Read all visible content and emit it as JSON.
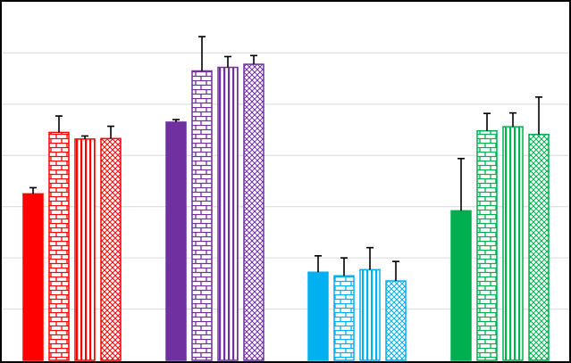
{
  "chart_data": {
    "type": "bar",
    "title": "",
    "xlabel": "",
    "ylabel": "",
    "ylim": [
      0,
      7
    ],
    "grid": true,
    "legend": "none",
    "categories": [
      "",
      "",
      "",
      ""
    ],
    "groups": [
      {
        "color": "#ff0000",
        "bars": [
          {
            "pattern": "solid",
            "value": 3.25,
            "error": 0.12
          },
          {
            "pattern": "brick",
            "value": 4.45,
            "error": 0.32
          },
          {
            "pattern": "vertical",
            "value": 4.32,
            "error": 0.06
          },
          {
            "pattern": "crosshatch",
            "value": 4.33,
            "error": 0.24
          }
        ]
      },
      {
        "color": "#7030a0",
        "bars": [
          {
            "pattern": "solid",
            "value": 4.65,
            "error": 0.05
          },
          {
            "pattern": "brick",
            "value": 5.65,
            "error": 0.67
          },
          {
            "pattern": "vertical",
            "value": 5.72,
            "error": 0.21
          },
          {
            "pattern": "crosshatch",
            "value": 5.78,
            "error": 0.17
          }
        ]
      },
      {
        "color": "#00b0f0",
        "bars": [
          {
            "pattern": "solid",
            "value": 1.72,
            "error": 0.32
          },
          {
            "pattern": "brick",
            "value": 1.65,
            "error": 0.35
          },
          {
            "pattern": "vertical",
            "value": 1.77,
            "error": 0.43
          },
          {
            "pattern": "crosshatch",
            "value": 1.55,
            "error": 0.38
          }
        ]
      },
      {
        "color": "#00b050",
        "bars": [
          {
            "pattern": "solid",
            "value": 2.92,
            "error": 1.02
          },
          {
            "pattern": "brick",
            "value": 4.48,
            "error": 0.34
          },
          {
            "pattern": "vertical",
            "value": 4.56,
            "error": 0.27
          },
          {
            "pattern": "crosshatch",
            "value": 4.41,
            "error": 0.73
          }
        ]
      }
    ]
  }
}
